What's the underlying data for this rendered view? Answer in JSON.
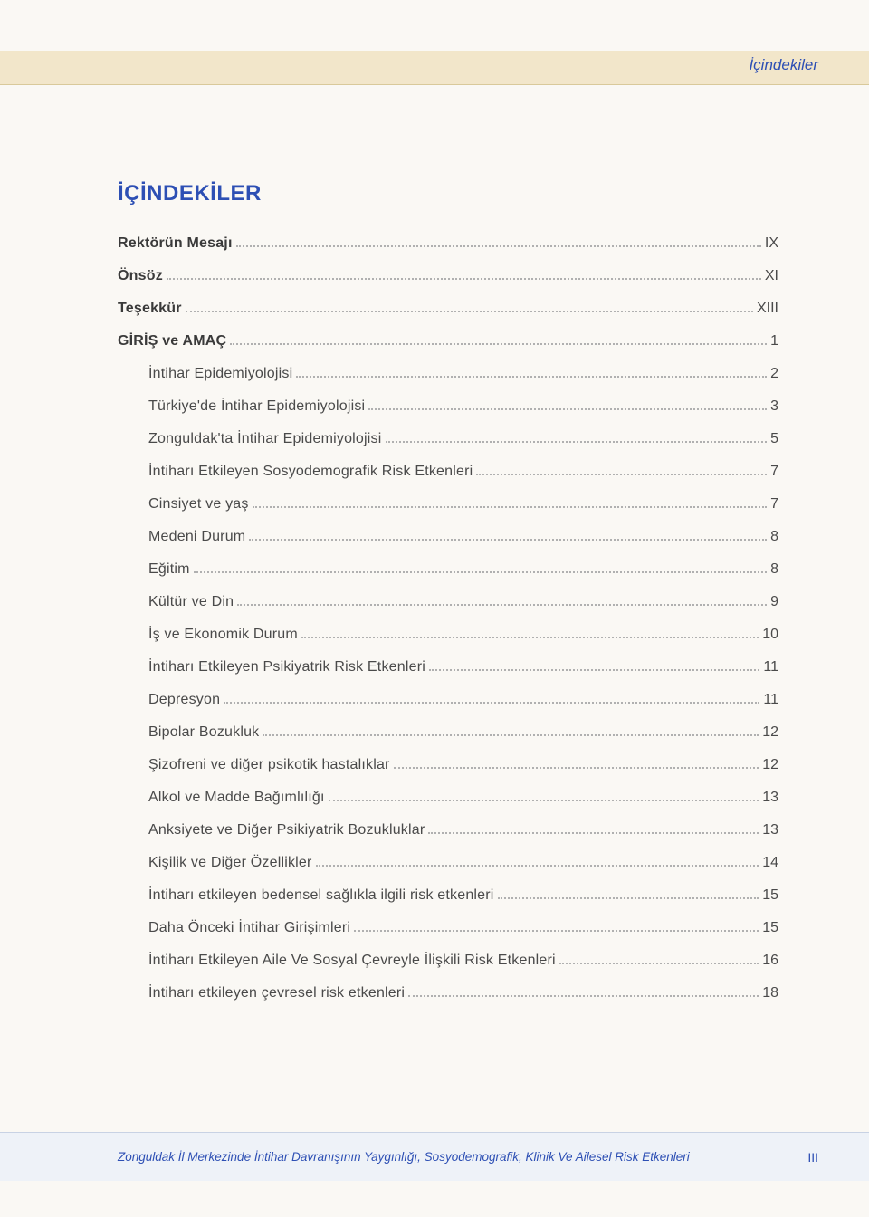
{
  "header": {
    "section_label": "İçindekiler"
  },
  "title": "İÇİNDEKİLER",
  "toc": [
    {
      "label": "Rektörün Mesajı",
      "page": "IX",
      "bold": true,
      "indent": false
    },
    {
      "label": "Önsöz",
      "page": "XI",
      "bold": true,
      "indent": false
    },
    {
      "label": "Teşekkür",
      "page": "XIII",
      "bold": true,
      "indent": false
    },
    {
      "label": "GİRİŞ ve AMAÇ",
      "page": "1",
      "bold": true,
      "indent": false
    },
    {
      "label": "İntihar Epidemiyolojisi",
      "page": "2",
      "bold": false,
      "indent": true
    },
    {
      "label": "Türkiye'de İntihar Epidemiyolojisi",
      "page": "3",
      "bold": false,
      "indent": true
    },
    {
      "label": "Zonguldak'ta İntihar Epidemiyolojisi",
      "page": "5",
      "bold": false,
      "indent": true
    },
    {
      "label": "İntiharı Etkileyen Sosyodemografik Risk Etkenleri",
      "page": "7",
      "bold": false,
      "indent": true
    },
    {
      "label": "Cinsiyet ve yaş",
      "page": "7",
      "bold": false,
      "indent": true
    },
    {
      "label": "Medeni Durum",
      "page": "8",
      "bold": false,
      "indent": true
    },
    {
      "label": "Eğitim",
      "page": "8",
      "bold": false,
      "indent": true
    },
    {
      "label": "Kültür ve Din",
      "page": "9",
      "bold": false,
      "indent": true
    },
    {
      "label": "İş ve Ekonomik Durum",
      "page": "10",
      "bold": false,
      "indent": true
    },
    {
      "label": "İntiharı Etkileyen Psikiyatrik Risk Etkenleri",
      "page": "11",
      "bold": false,
      "indent": true
    },
    {
      "label": "Depresyon",
      "page": "11",
      "bold": false,
      "indent": true
    },
    {
      "label": "Bipolar Bozukluk",
      "page": "12",
      "bold": false,
      "indent": true
    },
    {
      "label": "Şizofreni ve diğer psikotik hastalıklar",
      "page": "12",
      "bold": false,
      "indent": true
    },
    {
      "label": "Alkol ve Madde Bağımlılığı",
      "page": "13",
      "bold": false,
      "indent": true
    },
    {
      "label": "Anksiyete ve Diğer Psikiyatrik Bozukluklar",
      "page": "13",
      "bold": false,
      "indent": true
    },
    {
      "label": "Kişilik ve Diğer Özellikler",
      "page": "14",
      "bold": false,
      "indent": true
    },
    {
      "label": "İntiharı etkileyen bedensel sağlıkla ilgili risk etkenleri",
      "page": "15",
      "bold": false,
      "indent": true
    },
    {
      "label": "Daha Önceki İntihar Girişimleri",
      "page": "15",
      "bold": false,
      "indent": true
    },
    {
      "label": "İntiharı Etkileyen Aile Ve Sosyal Çevreyle İlişkili Risk Etkenleri",
      "page": "16",
      "bold": false,
      "indent": true
    },
    {
      "label": "İntiharı etkileyen çevresel risk etkenleri",
      "page": "18",
      "bold": false,
      "indent": true
    }
  ],
  "footer": {
    "text": "Zonguldak İl Merkezinde İntihar Davranışının Yaygınlığı, Sosyodemografik, Klinik Ve Ailesel Risk Etkenleri",
    "page_number": "III"
  },
  "colors": {
    "header_band": "#f2e6ca",
    "header_border": "#d9c99a",
    "accent_text": "#2d4fb4",
    "body_text": "#4a4a4a",
    "page_bg": "#faf8f4",
    "footer_band": "#eef2f8",
    "footer_border": "#c8d2e4",
    "dot_color": "#b0b0b0"
  },
  "typography": {
    "title_fontsize": 24,
    "toc_fontsize": 16,
    "header_fontsize": 17,
    "footer_fontsize": 13.5
  }
}
